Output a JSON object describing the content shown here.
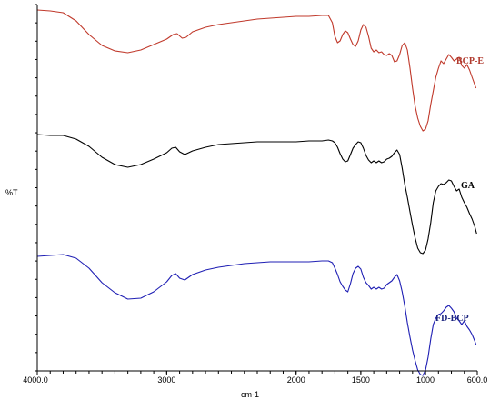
{
  "chart_data": {
    "type": "line",
    "xlabel": "cm-1",
    "ylabel": "%T",
    "x_reversed": true,
    "xlim": [
      4000.0,
      600.0
    ],
    "x_ticks": [
      {
        "value": 4000,
        "label": "4000.0"
      },
      {
        "value": 3000,
        "label": "3000"
      },
      {
        "value": 2000,
        "label": "2000"
      },
      {
        "value": 1500,
        "label": "1500"
      },
      {
        "value": 1000,
        "label": "1000"
      },
      {
        "value": 600,
        "label": "600.0"
      }
    ],
    "grid": false,
    "series": [
      {
        "name": "BCP-E",
        "color": "#c0392b",
        "label_color": "#b03a2e",
        "points": [
          [
            4000,
            6
          ],
          [
            3900,
            7
          ],
          [
            3800,
            9
          ],
          [
            3700,
            18
          ],
          [
            3600,
            33
          ],
          [
            3500,
            45
          ],
          [
            3400,
            51
          ],
          [
            3300,
            53
          ],
          [
            3200,
            50
          ],
          [
            3100,
            44
          ],
          [
            3000,
            38
          ],
          [
            2950,
            33
          ],
          [
            2920,
            32
          ],
          [
            2880,
            37
          ],
          [
            2850,
            36
          ],
          [
            2800,
            30
          ],
          [
            2700,
            25
          ],
          [
            2600,
            22
          ],
          [
            2500,
            20
          ],
          [
            2400,
            18
          ],
          [
            2300,
            16
          ],
          [
            2200,
            15
          ],
          [
            2100,
            14
          ],
          [
            2000,
            13
          ],
          [
            1900,
            13
          ],
          [
            1800,
            12
          ],
          [
            1750,
            12
          ],
          [
            1720,
            20
          ],
          [
            1700,
            35
          ],
          [
            1680,
            42
          ],
          [
            1660,
            40
          ],
          [
            1640,
            33
          ],
          [
            1620,
            29
          ],
          [
            1600,
            31
          ],
          [
            1580,
            38
          ],
          [
            1560,
            44
          ],
          [
            1540,
            46
          ],
          [
            1520,
            40
          ],
          [
            1500,
            28
          ],
          [
            1480,
            22
          ],
          [
            1460,
            25
          ],
          [
            1440,
            35
          ],
          [
            1420,
            48
          ],
          [
            1400,
            52
          ],
          [
            1380,
            50
          ],
          [
            1360,
            53
          ],
          [
            1340,
            52
          ],
          [
            1320,
            55
          ],
          [
            1300,
            56
          ],
          [
            1280,
            54
          ],
          [
            1260,
            56
          ],
          [
            1240,
            63
          ],
          [
            1220,
            62
          ],
          [
            1200,
            55
          ],
          [
            1180,
            45
          ],
          [
            1160,
            42
          ],
          [
            1140,
            50
          ],
          [
            1120,
            70
          ],
          [
            1100,
            92
          ],
          [
            1080,
            112
          ],
          [
            1060,
            125
          ],
          [
            1040,
            134
          ],
          [
            1020,
            139
          ],
          [
            1000,
            137
          ],
          [
            980,
            128
          ],
          [
            960,
            110
          ],
          [
            940,
            95
          ],
          [
            920,
            80
          ],
          [
            900,
            70
          ],
          [
            880,
            62
          ],
          [
            860,
            65
          ],
          [
            840,
            60
          ],
          [
            820,
            55
          ],
          [
            800,
            58
          ],
          [
            780,
            62
          ],
          [
            760,
            60
          ],
          [
            740,
            58
          ],
          [
            720,
            67
          ],
          [
            700,
            70
          ],
          [
            680,
            66
          ],
          [
            660,
            72
          ],
          [
            640,
            80
          ],
          [
            620,
            88
          ],
          [
            610,
            92
          ]
        ]
      },
      {
        "name": "GA",
        "color": "#000000",
        "label_color": "#000000",
        "points": [
          [
            4000,
            143
          ],
          [
            3900,
            144
          ],
          [
            3800,
            144
          ],
          [
            3700,
            148
          ],
          [
            3600,
            156
          ],
          [
            3500,
            168
          ],
          [
            3400,
            176
          ],
          [
            3300,
            179
          ],
          [
            3200,
            176
          ],
          [
            3100,
            170
          ],
          [
            3000,
            163
          ],
          [
            2960,
            158
          ],
          [
            2930,
            157
          ],
          [
            2900,
            162
          ],
          [
            2860,
            165
          ],
          [
            2800,
            161
          ],
          [
            2700,
            157
          ],
          [
            2600,
            154
          ],
          [
            2500,
            153
          ],
          [
            2400,
            152
          ],
          [
            2300,
            151
          ],
          [
            2200,
            151
          ],
          [
            2100,
            151
          ],
          [
            2000,
            151
          ],
          [
            1900,
            150
          ],
          [
            1800,
            150
          ],
          [
            1750,
            149
          ],
          [
            1720,
            150
          ],
          [
            1700,
            152
          ],
          [
            1680,
            157
          ],
          [
            1660,
            164
          ],
          [
            1640,
            170
          ],
          [
            1620,
            173
          ],
          [
            1600,
            172
          ],
          [
            1580,
            165
          ],
          [
            1560,
            158
          ],
          [
            1540,
            154
          ],
          [
            1520,
            151
          ],
          [
            1500,
            152
          ],
          [
            1480,
            158
          ],
          [
            1460,
            166
          ],
          [
            1440,
            171
          ],
          [
            1420,
            174
          ],
          [
            1400,
            172
          ],
          [
            1380,
            174
          ],
          [
            1360,
            172
          ],
          [
            1340,
            174
          ],
          [
            1320,
            173
          ],
          [
            1300,
            170
          ],
          [
            1280,
            169
          ],
          [
            1260,
            167
          ],
          [
            1240,
            163
          ],
          [
            1220,
            160
          ],
          [
            1200,
            165
          ],
          [
            1180,
            180
          ],
          [
            1160,
            198
          ],
          [
            1140,
            212
          ],
          [
            1120,
            228
          ],
          [
            1100,
            243
          ],
          [
            1080,
            257
          ],
          [
            1060,
            268
          ],
          [
            1040,
            273
          ],
          [
            1020,
            274
          ],
          [
            1000,
            270
          ],
          [
            980,
            258
          ],
          [
            960,
            240
          ],
          [
            940,
            218
          ],
          [
            920,
            205
          ],
          [
            900,
            200
          ],
          [
            880,
            197
          ],
          [
            860,
            198
          ],
          [
            840,
            196
          ],
          [
            820,
            193
          ],
          [
            800,
            194
          ],
          [
            780,
            200
          ],
          [
            760,
            205
          ],
          [
            740,
            203
          ],
          [
            720,
            212
          ],
          [
            700,
            218
          ],
          [
            680,
            223
          ],
          [
            660,
            230
          ],
          [
            640,
            236
          ],
          [
            620,
            244
          ],
          [
            605,
            252
          ]
        ]
      },
      {
        "name": "FD-BCP",
        "color": "#1f1fb4",
        "label_color": "#1a237e",
        "points": [
          [
            4000,
            277
          ],
          [
            3900,
            276
          ],
          [
            3800,
            275
          ],
          [
            3700,
            279
          ],
          [
            3600,
            290
          ],
          [
            3500,
            306
          ],
          [
            3400,
            317
          ],
          [
            3300,
            324
          ],
          [
            3200,
            323
          ],
          [
            3100,
            316
          ],
          [
            3000,
            305
          ],
          [
            2960,
            298
          ],
          [
            2930,
            296
          ],
          [
            2900,
            301
          ],
          [
            2860,
            303
          ],
          [
            2800,
            297
          ],
          [
            2700,
            292
          ],
          [
            2600,
            289
          ],
          [
            2500,
            287
          ],
          [
            2400,
            285
          ],
          [
            2300,
            284
          ],
          [
            2200,
            283
          ],
          [
            2100,
            283
          ],
          [
            2000,
            283
          ],
          [
            1900,
            283
          ],
          [
            1800,
            282
          ],
          [
            1750,
            282
          ],
          [
            1720,
            284
          ],
          [
            1700,
            290
          ],
          [
            1680,
            297
          ],
          [
            1660,
            305
          ],
          [
            1640,
            310
          ],
          [
            1620,
            314
          ],
          [
            1600,
            316
          ],
          [
            1580,
            307
          ],
          [
            1560,
            296
          ],
          [
            1540,
            290
          ],
          [
            1520,
            288
          ],
          [
            1500,
            291
          ],
          [
            1480,
            300
          ],
          [
            1460,
            306
          ],
          [
            1440,
            309
          ],
          [
            1420,
            313
          ],
          [
            1400,
            311
          ],
          [
            1380,
            313
          ],
          [
            1360,
            311
          ],
          [
            1340,
            313
          ],
          [
            1320,
            312
          ],
          [
            1300,
            308
          ],
          [
            1280,
            306
          ],
          [
            1260,
            304
          ],
          [
            1240,
            300
          ],
          [
            1220,
            297
          ],
          [
            1200,
            304
          ],
          [
            1180,
            316
          ],
          [
            1160,
            332
          ],
          [
            1140,
            350
          ],
          [
            1120,
            366
          ],
          [
            1100,
            380
          ],
          [
            1080,
            392
          ],
          [
            1060,
            402
          ],
          [
            1040,
            407
          ],
          [
            1020,
            408
          ],
          [
            1000,
            402
          ],
          [
            980,
            388
          ],
          [
            960,
            368
          ],
          [
            940,
            352
          ],
          [
            920,
            345
          ],
          [
            900,
            341
          ],
          [
            880,
            340
          ],
          [
            860,
            337
          ],
          [
            840,
            333
          ],
          [
            820,
            331
          ],
          [
            800,
            334
          ],
          [
            780,
            338
          ],
          [
            760,
            345
          ],
          [
            740,
            348
          ],
          [
            720,
            352
          ],
          [
            700,
            348
          ],
          [
            680,
            354
          ],
          [
            660,
            358
          ],
          [
            640,
            363
          ],
          [
            620,
            370
          ],
          [
            610,
            374
          ]
        ]
      }
    ]
  }
}
